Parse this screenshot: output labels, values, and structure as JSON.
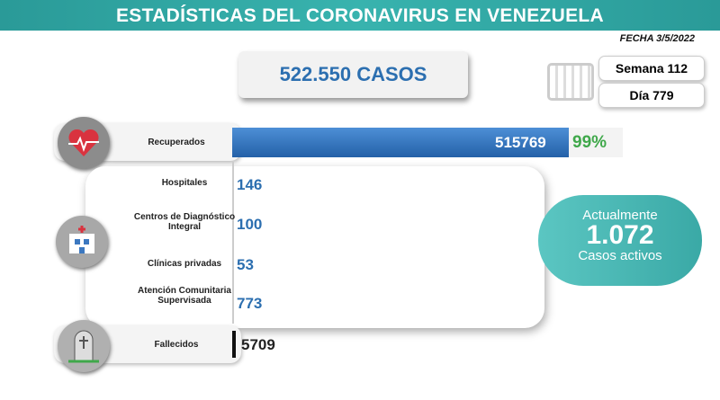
{
  "header": {
    "title": "ESTADÍSTICAS DEL CORONAVIRUS EN VENEZUELA",
    "date": "FECHA 3/5/2022"
  },
  "total_cases": "522.550 CASOS",
  "week": "Semana 112",
  "day": "Día 779",
  "recovered": {
    "label": "Recuperados",
    "value": "515769",
    "percent": "99%"
  },
  "active_locations": [
    {
      "label": "Hospitales",
      "value": "146"
    },
    {
      "label": "Centros de Diagnóstico Integral",
      "value": "100"
    },
    {
      "label": "Clínicas privadas",
      "value": "53"
    },
    {
      "label": "Atención Comunitaria Supervisada",
      "value": "773"
    }
  ],
  "active": {
    "heading": "Actualmente",
    "value": "1.072",
    "caption": "Casos activos"
  },
  "deceased": {
    "label": "Fallecidos",
    "value": "5709"
  }
}
